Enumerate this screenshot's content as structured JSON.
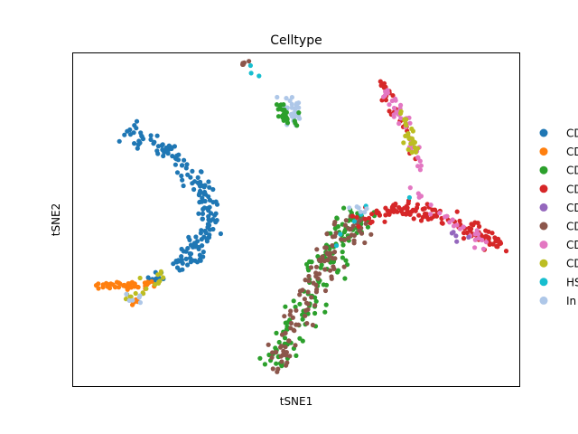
{
  "chart_data": {
    "type": "scatter",
    "title": "Celltype",
    "xlabel": "tSNE1",
    "ylabel": "tSNE2",
    "xlim": [
      0,
      100
    ],
    "ylim": [
      0,
      100
    ],
    "grid": false,
    "ticks": false,
    "legend_placement": "right-outside",
    "series": [
      {
        "name": "CD",
        "color": "#1f77b4"
      },
      {
        "name": "CD",
        "color": "#ff7f0e"
      },
      {
        "name": "CD",
        "color": "#2ca02c"
      },
      {
        "name": "CD",
        "color": "#d62728"
      },
      {
        "name": "CD",
        "color": "#9467bd"
      },
      {
        "name": "CD",
        "color": "#8c564b"
      },
      {
        "name": "CD",
        "color": "#e377c2"
      },
      {
        "name": "CD",
        "color": "#bcbd22"
      },
      {
        "name": "HS",
        "color": "#17becf"
      },
      {
        "name": "In",
        "color": "#aec7e8"
      }
    ],
    "clusters": [
      {
        "series": 0,
        "path": [
          [
            12,
            77
          ],
          [
            17,
            74
          ],
          [
            23,
            69
          ],
          [
            28,
            61
          ],
          [
            31,
            55
          ],
          [
            30,
            47
          ],
          [
            27,
            40
          ],
          [
            24,
            36
          ]
        ],
        "n": 170,
        "spread": 1.4
      },
      {
        "series": 0,
        "path": [
          [
            20,
            33
          ],
          [
            17,
            31
          ]
        ],
        "n": 12,
        "spread": 0.8
      },
      {
        "series": 1,
        "path": [
          [
            5,
            30
          ],
          [
            10,
            30
          ],
          [
            15,
            30
          ],
          [
            18,
            31
          ]
        ],
        "n": 45,
        "spread": 0.6
      },
      {
        "series": 1,
        "path": [
          [
            13,
            27
          ],
          [
            14,
            25
          ]
        ],
        "n": 6,
        "spread": 0.5
      },
      {
        "series": 7,
        "path": [
          [
            12,
            28
          ],
          [
            15,
            27
          ],
          [
            18,
            32
          ],
          [
            21,
            34
          ]
        ],
        "n": 18,
        "spread": 0.8
      },
      {
        "series": 9,
        "path": [
          [
            13,
            27
          ],
          [
            15,
            26
          ]
        ],
        "n": 6,
        "spread": 0.6
      },
      {
        "series": 9,
        "path": [
          [
            47,
            88
          ],
          [
            49,
            84
          ],
          [
            50,
            80
          ]
        ],
        "n": 28,
        "spread": 1.0
      },
      {
        "series": 2,
        "path": [
          [
            46,
            85
          ],
          [
            48,
            81
          ],
          [
            50,
            79
          ]
        ],
        "n": 22,
        "spread": 0.9
      },
      {
        "series": 5,
        "path": [
          [
            38,
            97
          ],
          [
            39,
            97
          ]
        ],
        "n": 5,
        "spread": 0.4
      },
      {
        "series": 8,
        "path": [
          [
            43,
            90
          ],
          [
            39,
            96
          ]
        ],
        "n": 3,
        "spread": 0.5
      },
      {
        "series": 2,
        "path": [
          [
            45,
            6
          ],
          [
            50,
            18
          ],
          [
            55,
            33
          ],
          [
            60,
            45
          ],
          [
            64,
            52
          ]
        ],
        "n": 150,
        "spread": 1.9
      },
      {
        "series": 5,
        "path": [
          [
            45,
            5
          ],
          [
            49,
            17
          ],
          [
            54,
            31
          ],
          [
            59,
            43
          ],
          [
            64,
            50
          ]
        ],
        "n": 120,
        "spread": 1.8
      },
      {
        "series": 3,
        "path": [
          [
            64,
            50
          ],
          [
            72,
            53
          ],
          [
            80,
            52
          ],
          [
            88,
            48
          ],
          [
            95,
            42
          ]
        ],
        "n": 130,
        "spread": 1.3
      },
      {
        "series": 6,
        "path": [
          [
            76,
            60
          ],
          [
            80,
            52
          ],
          [
            88,
            48
          ],
          [
            93,
            42
          ]
        ],
        "n": 25,
        "spread": 1.0
      },
      {
        "series": 4,
        "path": [
          [
            84,
            47
          ],
          [
            88,
            44
          ]
        ],
        "n": 5,
        "spread": 0.7
      },
      {
        "series": 3,
        "path": [
          [
            69,
            92
          ],
          [
            71,
            86
          ],
          [
            73,
            80
          ],
          [
            75,
            74
          ],
          [
            77,
            68
          ]
        ],
        "n": 30,
        "spread": 0.8
      },
      {
        "series": 6,
        "path": [
          [
            70,
            89
          ],
          [
            73,
            82
          ],
          [
            76,
            72
          ],
          [
            78,
            66
          ]
        ],
        "n": 40,
        "spread": 0.8
      },
      {
        "series": 7,
        "path": [
          [
            72,
            84
          ],
          [
            75,
            76
          ],
          [
            77,
            70
          ]
        ],
        "n": 25,
        "spread": 0.8
      },
      {
        "series": 8,
        "path": [
          [
            76,
            57
          ],
          [
            69,
            55
          ],
          [
            65,
            53
          ],
          [
            52,
            33
          ]
        ],
        "n": 6,
        "spread": 0.7
      },
      {
        "series": 9,
        "path": [
          [
            62,
            52
          ],
          [
            66,
            54
          ]
        ],
        "n": 6,
        "spread": 0.8
      }
    ]
  }
}
